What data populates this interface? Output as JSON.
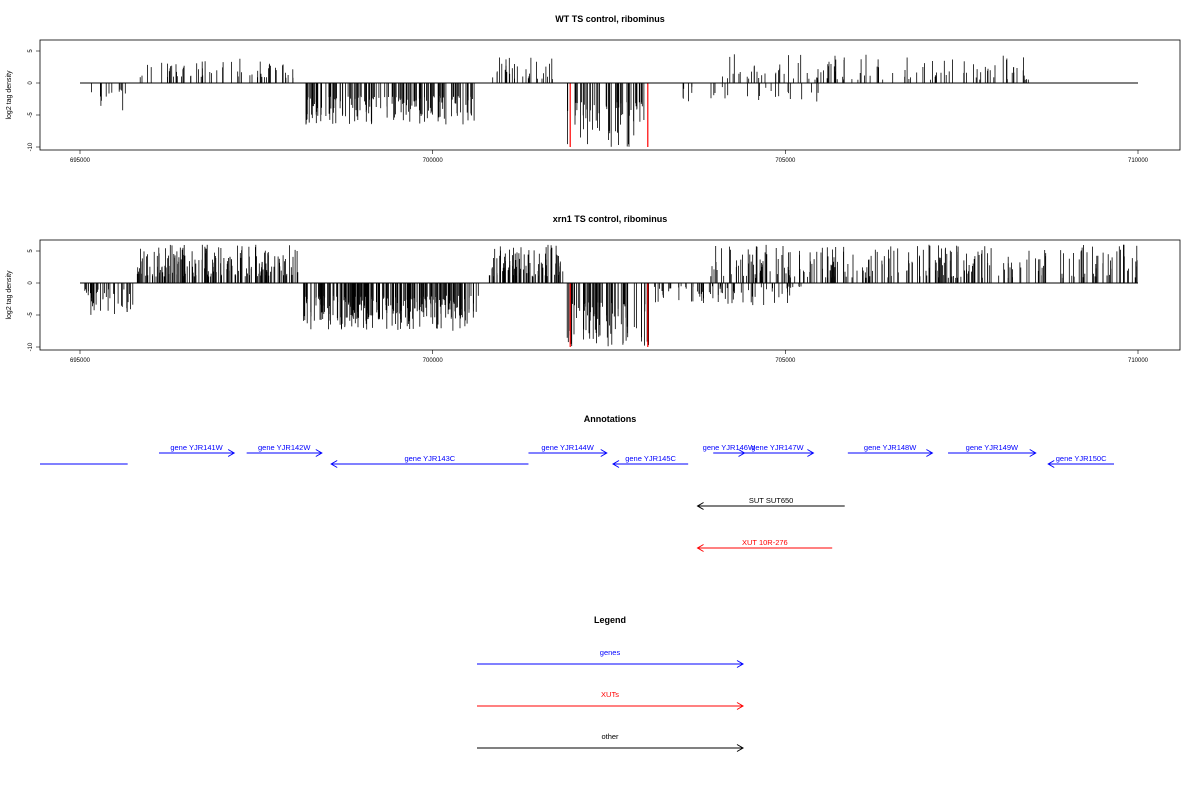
{
  "chart_data": [
    {
      "type": "bar",
      "title": "WT TS control, ribominus",
      "ylabel": "log2 tag density",
      "xlim": [
        695000,
        710000
      ],
      "ylim": [
        -10,
        6
      ],
      "xticks": [
        695000,
        700000,
        705000,
        710000
      ],
      "yticks": [
        5,
        0,
        -5,
        -10
      ],
      "colors": {
        "bars": "#000000",
        "highlight": "#ff0000",
        "axis": "#000000"
      },
      "segments": [
        {
          "start": 695100,
          "end": 695700,
          "min": -4.5,
          "max": -1,
          "density": 12,
          "seed": 11
        },
        {
          "start": 695850,
          "end": 698100,
          "min": 0.8,
          "max": 3.8,
          "density": 60,
          "seed": 12
        },
        {
          "start": 698200,
          "end": 700600,
          "min": -6.5,
          "max": -2,
          "density": 170,
          "seed": 13
        },
        {
          "start": 700850,
          "end": 701700,
          "min": 0.6,
          "max": 4,
          "density": 30,
          "seed": 14
        },
        {
          "start": 701900,
          "end": 703000,
          "min": -10,
          "max": -3,
          "density": 60,
          "seed": 15
        },
        {
          "start": 703500,
          "end": 704200,
          "min": -3,
          "max": -0.5,
          "density": 12,
          "seed": 16
        },
        {
          "start": 704100,
          "end": 708500,
          "min": 0.5,
          "max": 4.5,
          "density": 110,
          "seed": 17
        },
        {
          "start": 704400,
          "end": 705500,
          "min": -3,
          "max": -0.5,
          "density": 14,
          "seed": 18
        }
      ],
      "highlights": [
        {
          "x": 701950,
          "y": -10
        },
        {
          "x": 703050,
          "y": -10
        }
      ]
    },
    {
      "type": "bar",
      "title": "xrn1 TS control, ribominus",
      "ylabel": "log2 tag density",
      "xlim": [
        695000,
        710000
      ],
      "ylim": [
        -10,
        6
      ],
      "xticks": [
        695000,
        700000,
        705000,
        710000
      ],
      "yticks": [
        5,
        0,
        -5,
        -10
      ],
      "colors": {
        "bars": "#000000",
        "highlight": "#ff0000",
        "axis": "#000000"
      },
      "segments": [
        {
          "start": 695050,
          "end": 695750,
          "min": -5,
          "max": -1,
          "density": 40,
          "seed": 21
        },
        {
          "start": 695800,
          "end": 698100,
          "min": 1,
          "max": 6,
          "density": 180,
          "seed": 22
        },
        {
          "start": 698150,
          "end": 700650,
          "min": -7.5,
          "max": -2,
          "density": 260,
          "seed": 23
        },
        {
          "start": 700800,
          "end": 701850,
          "min": 1,
          "max": 6,
          "density": 90,
          "seed": 24
        },
        {
          "start": 701900,
          "end": 703100,
          "min": -10,
          "max": -3,
          "density": 80,
          "seed": 25
        },
        {
          "start": 703100,
          "end": 705300,
          "min": -3.5,
          "max": -0.5,
          "density": 70,
          "seed": 26
        },
        {
          "start": 703900,
          "end": 710000,
          "min": 0.8,
          "max": 6,
          "density": 260,
          "seed": 27
        }
      ],
      "highlights": [
        {
          "x": 701950,
          "y": -10
        },
        {
          "x": 703050,
          "y": -10
        }
      ]
    }
  ],
  "annotations": {
    "title": "Annotations",
    "xlim": [
      695000,
      710000
    ],
    "features": [
      {
        "label": "",
        "start": 694900,
        "end": 696300,
        "dir": "-",
        "row": 1,
        "kind": "gene"
      },
      {
        "label": "gene YJR141W",
        "start": 696800,
        "end": 698000,
        "dir": "+",
        "row": 0,
        "kind": "gene"
      },
      {
        "label": "gene YJR142W",
        "start": 698200,
        "end": 699400,
        "dir": "+",
        "row": 0,
        "kind": "gene"
      },
      {
        "label": "gene YJR143C",
        "start": 699550,
        "end": 702700,
        "dir": "-",
        "row": 1,
        "kind": "gene"
      },
      {
        "label": "gene YJR144W",
        "start": 702700,
        "end": 703950,
        "dir": "+",
        "row": 0,
        "kind": "gene"
      },
      {
        "label": "gene YJR145C",
        "start": 704050,
        "end": 705250,
        "dir": "-",
        "row": 1,
        "kind": "gene"
      },
      {
        "label": "gene YJR146W",
        "start": 705650,
        "end": 706150,
        "dir": "+",
        "row": 0,
        "kind": "gene"
      },
      {
        "label": "gene YJR147W",
        "start": 706100,
        "end": 707250,
        "dir": "+",
        "row": 0,
        "kind": "gene"
      },
      {
        "label": "gene YJR148W",
        "start": 707800,
        "end": 709150,
        "dir": "+",
        "row": 0,
        "kind": "gene"
      },
      {
        "label": "gene YJR149W",
        "start": 709400,
        "end": 710800,
        "dir": "+",
        "row": 0,
        "kind": "gene"
      },
      {
        "label": "gene YJR150C",
        "start": 711000,
        "end": 712050,
        "dir": "-",
        "row": 1,
        "kind": "gene"
      },
      {
        "label": "SUT SUT650",
        "start": 705400,
        "end": 707750,
        "dir": "-",
        "row": 3,
        "kind": "other"
      },
      {
        "label": "XUT 10R-276",
        "start": 705400,
        "end": 707550,
        "dir": "-",
        "row": 5,
        "kind": "xut"
      }
    ]
  },
  "legend": {
    "title": "Legend",
    "items": [
      {
        "label": "genes",
        "kind": "gene"
      },
      {
        "label": "XUTs",
        "kind": "xut"
      },
      {
        "label": "other",
        "kind": "other"
      }
    ]
  },
  "kind_colors": {
    "gene": "#0000ff",
    "xut": "#ff0000",
    "other": "#000000"
  }
}
